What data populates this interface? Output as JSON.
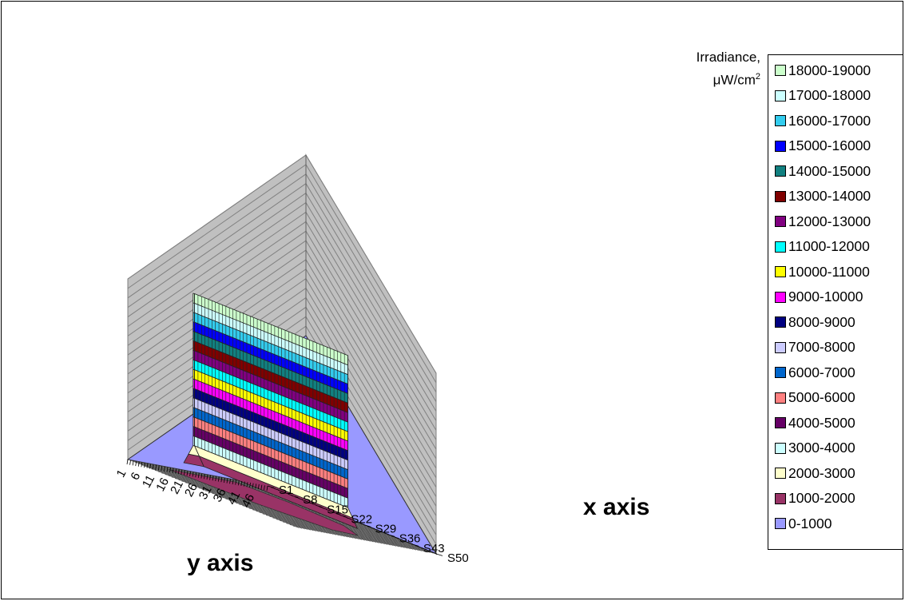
{
  "chart_data": {
    "type": "surface",
    "title": "",
    "units_label_line1": "Irradiance,",
    "units_label_line2_prefix": "μW/cm",
    "units_label_line2_sup": "2",
    "xlabel": "x axis",
    "ylabel": "y axis",
    "x_ticks": [
      "S1",
      "S8",
      "S15",
      "S22",
      "S29",
      "S36",
      "S43",
      "S50"
    ],
    "y_ticks": [
      "1",
      "6",
      "11",
      "16",
      "21",
      "26",
      "31",
      "36",
      "41",
      "46"
    ],
    "z_range": [
      0,
      19000
    ],
    "peak_irradiance_approx": 19000,
    "legend_position": "right",
    "legend": [
      {
        "label": "18000-19000",
        "color": "#ccffcc"
      },
      {
        "label": "17000-18000",
        "color": "#ccffff"
      },
      {
        "label": "16000-17000",
        "color": "#33ccee"
      },
      {
        "label": "15000-16000",
        "color": "#0000ff"
      },
      {
        "label": "14000-15000",
        "color": "#118080"
      },
      {
        "label": "13000-14000",
        "color": "#800000"
      },
      {
        "label": "12000-13000",
        "color": "#800080"
      },
      {
        "label": "11000-12000",
        "color": "#00ffff"
      },
      {
        "label": "10000-11000",
        "color": "#ffff00"
      },
      {
        "label": "9000-10000",
        "color": "#ff00ff"
      },
      {
        "label": "8000-9000",
        "color": "#000080"
      },
      {
        "label": "7000-8000",
        "color": "#ccccff"
      },
      {
        "label": "6000-7000",
        "color": "#0066cc"
      },
      {
        "label": "5000-6000",
        "color": "#ff8080"
      },
      {
        "label": "4000-5000",
        "color": "#660066"
      },
      {
        "label": "3000-4000",
        "color": "#ccffff"
      },
      {
        "label": "2000-3000",
        "color": "#ffffcc"
      },
      {
        "label": "1000-2000",
        "color": "#993366"
      },
      {
        "label": "0-1000",
        "color": "#9999ff"
      }
    ]
  }
}
